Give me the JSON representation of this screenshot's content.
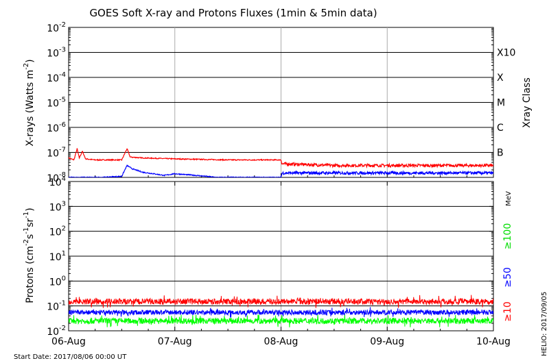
{
  "title": "GOES Soft X-ray and Protons Fluxes   (1min & 5min data)",
  "start_date": "Start Date: 2017/08/06 00:00 UT",
  "credit": "HELIO: 2017/09/05",
  "chart_data": [
    {
      "type": "line",
      "panel": "xrays",
      "ylabel": {
        "main": "X-rays (Watts m",
        "exp": "-2",
        "close": ")"
      },
      "y_scale": "log",
      "ylim": [
        1e-08,
        0.01
      ],
      "y_ticks": [
        {
          "base": "10",
          "exp": "-8",
          "v": 1e-08
        },
        {
          "base": "10",
          "exp": "-7",
          "v": 1e-07
        },
        {
          "base": "10",
          "exp": "-6",
          "v": 1e-06
        },
        {
          "base": "10",
          "exp": "-5",
          "v": 1e-05
        },
        {
          "base": "10",
          "exp": "-4",
          "v": 0.0001
        },
        {
          "base": "10",
          "exp": "-3",
          "v": 0.001
        },
        {
          "base": "10",
          "exp": "-2",
          "v": 0.01
        }
      ],
      "x_days": [
        0,
        4
      ],
      "right_axis_label": "Xray Class",
      "flare_classes": [
        {
          "label": "B",
          "v": 1e-07
        },
        {
          "label": "C",
          "v": 1e-06
        },
        {
          "label": "M",
          "v": 1e-05
        },
        {
          "label": "X",
          "v": 0.0001
        },
        {
          "label": "X10",
          "v": 0.001
        }
      ],
      "series": [
        {
          "color": "#ff0000",
          "points": [
            [
              0,
              6e-08
            ],
            [
              0.05,
              5e-08
            ],
            [
              0.08,
              1.4e-07
            ],
            [
              0.1,
              6e-08
            ],
            [
              0.13,
              1.1e-07
            ],
            [
              0.16,
              5.5e-08
            ],
            [
              0.25,
              5e-08
            ],
            [
              0.5,
              5e-08
            ],
            [
              0.55,
              1.4e-07
            ],
            [
              0.58,
              6.5e-08
            ],
            [
              0.7,
              6e-08
            ],
            [
              1.0,
              5.5e-08
            ],
            [
              1.5,
              5e-08
            ],
            [
              2.0,
              5e-08
            ],
            [
              2.01,
              3.5e-08
            ],
            [
              2.5,
              3e-08
            ],
            [
              3.0,
              3e-08
            ],
            [
              3.5,
              3e-08
            ],
            [
              4.0,
              3e-08
            ]
          ]
        },
        {
          "color": "#0000ff",
          "points": [
            [
              0,
              1e-08
            ],
            [
              0.3,
              1e-08
            ],
            [
              0.5,
              1.1e-08
            ],
            [
              0.55,
              3e-08
            ],
            [
              0.6,
              2.2e-08
            ],
            [
              0.7,
              1.6e-08
            ],
            [
              0.8,
              1.4e-08
            ],
            [
              0.9,
              1.2e-08
            ],
            [
              1.0,
              1.4e-08
            ],
            [
              1.2,
              1.2e-08
            ],
            [
              1.4,
              1e-08
            ],
            [
              1.6,
              1e-08
            ],
            [
              1.9,
              1e-08
            ],
            [
              2.0,
              1e-08
            ],
            [
              2.01,
              1.5e-08
            ],
            [
              2.5,
              1.5e-08
            ],
            [
              3.0,
              1.5e-08
            ],
            [
              3.5,
              1.5e-08
            ],
            [
              4.0,
              1.5e-08
            ]
          ]
        }
      ]
    },
    {
      "type": "line",
      "panel": "protons",
      "ylabel": {
        "main": "Protons (cm",
        "exp1": "-2",
        "mid1": "s",
        "exp2": "-1",
        "mid2": "sr",
        "exp3": "-1",
        "close": ")"
      },
      "y_scale": "log",
      "ylim": [
        0.01,
        10000
      ],
      "y_ticks": [
        {
          "base": "10",
          "exp": "-2",
          "v": 0.01
        },
        {
          "base": "10",
          "exp": "-1",
          "v": 0.1
        },
        {
          "base": "10",
          "exp": "0",
          "v": 1
        },
        {
          "base": "10",
          "exp": "1",
          "v": 10
        },
        {
          "base": "10",
          "exp": "2",
          "v": 100
        },
        {
          "base": "10",
          "exp": "3",
          "v": 1000
        },
        {
          "base": "10",
          "exp": "4",
          "v": 10000
        }
      ],
      "threshold": 10,
      "x_days": [
        0,
        4
      ],
      "x_ticks": [
        "06-Aug",
        "07-Aug",
        "08-Aug",
        "09-Aug",
        "10-Aug"
      ],
      "energy_unit": "MeV",
      "energy_labels": [
        {
          "label": "≥100",
          "color": "#00dd00"
        },
        {
          "label": "≥50",
          "color": "#0000ff"
        },
        {
          "label": "≥10",
          "color": "#ff0000"
        }
      ],
      "series": [
        {
          "color": "#ff0000",
          "level": 0.15,
          "spread": 0.12
        },
        {
          "color": "#0000ff",
          "level": 0.055,
          "spread": 0.1
        },
        {
          "color": "#00ff00",
          "level": 0.025,
          "spread": 0.12
        }
      ]
    }
  ]
}
